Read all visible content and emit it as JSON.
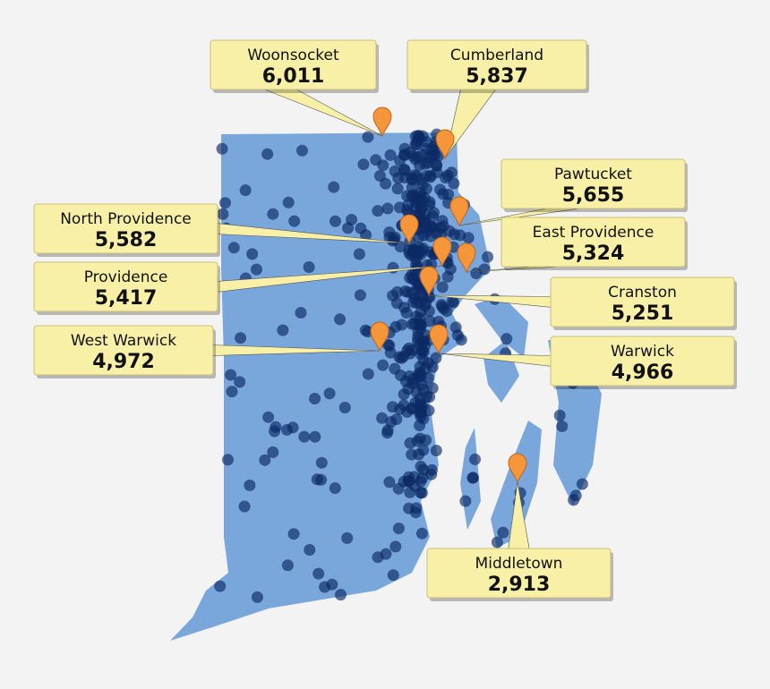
{
  "callouts": [
    {
      "name": "Woonsocket",
      "value": "6,011"
    },
    {
      "name": "Cumberland",
      "value": "5,837"
    },
    {
      "name": "Pawtucket",
      "value": "5,655"
    },
    {
      "name": "North Providence",
      "value": "5,582"
    },
    {
      "name": "East Providence",
      "value": "5,324"
    },
    {
      "name": "Providence",
      "value": "5,417"
    },
    {
      "name": "Cranston",
      "value": "5,251"
    },
    {
      "name": "West Warwick",
      "value": "4,972"
    },
    {
      "name": "Warwick",
      "value": "4,966"
    },
    {
      "name": "Middletown",
      "value": "2,913"
    }
  ]
}
